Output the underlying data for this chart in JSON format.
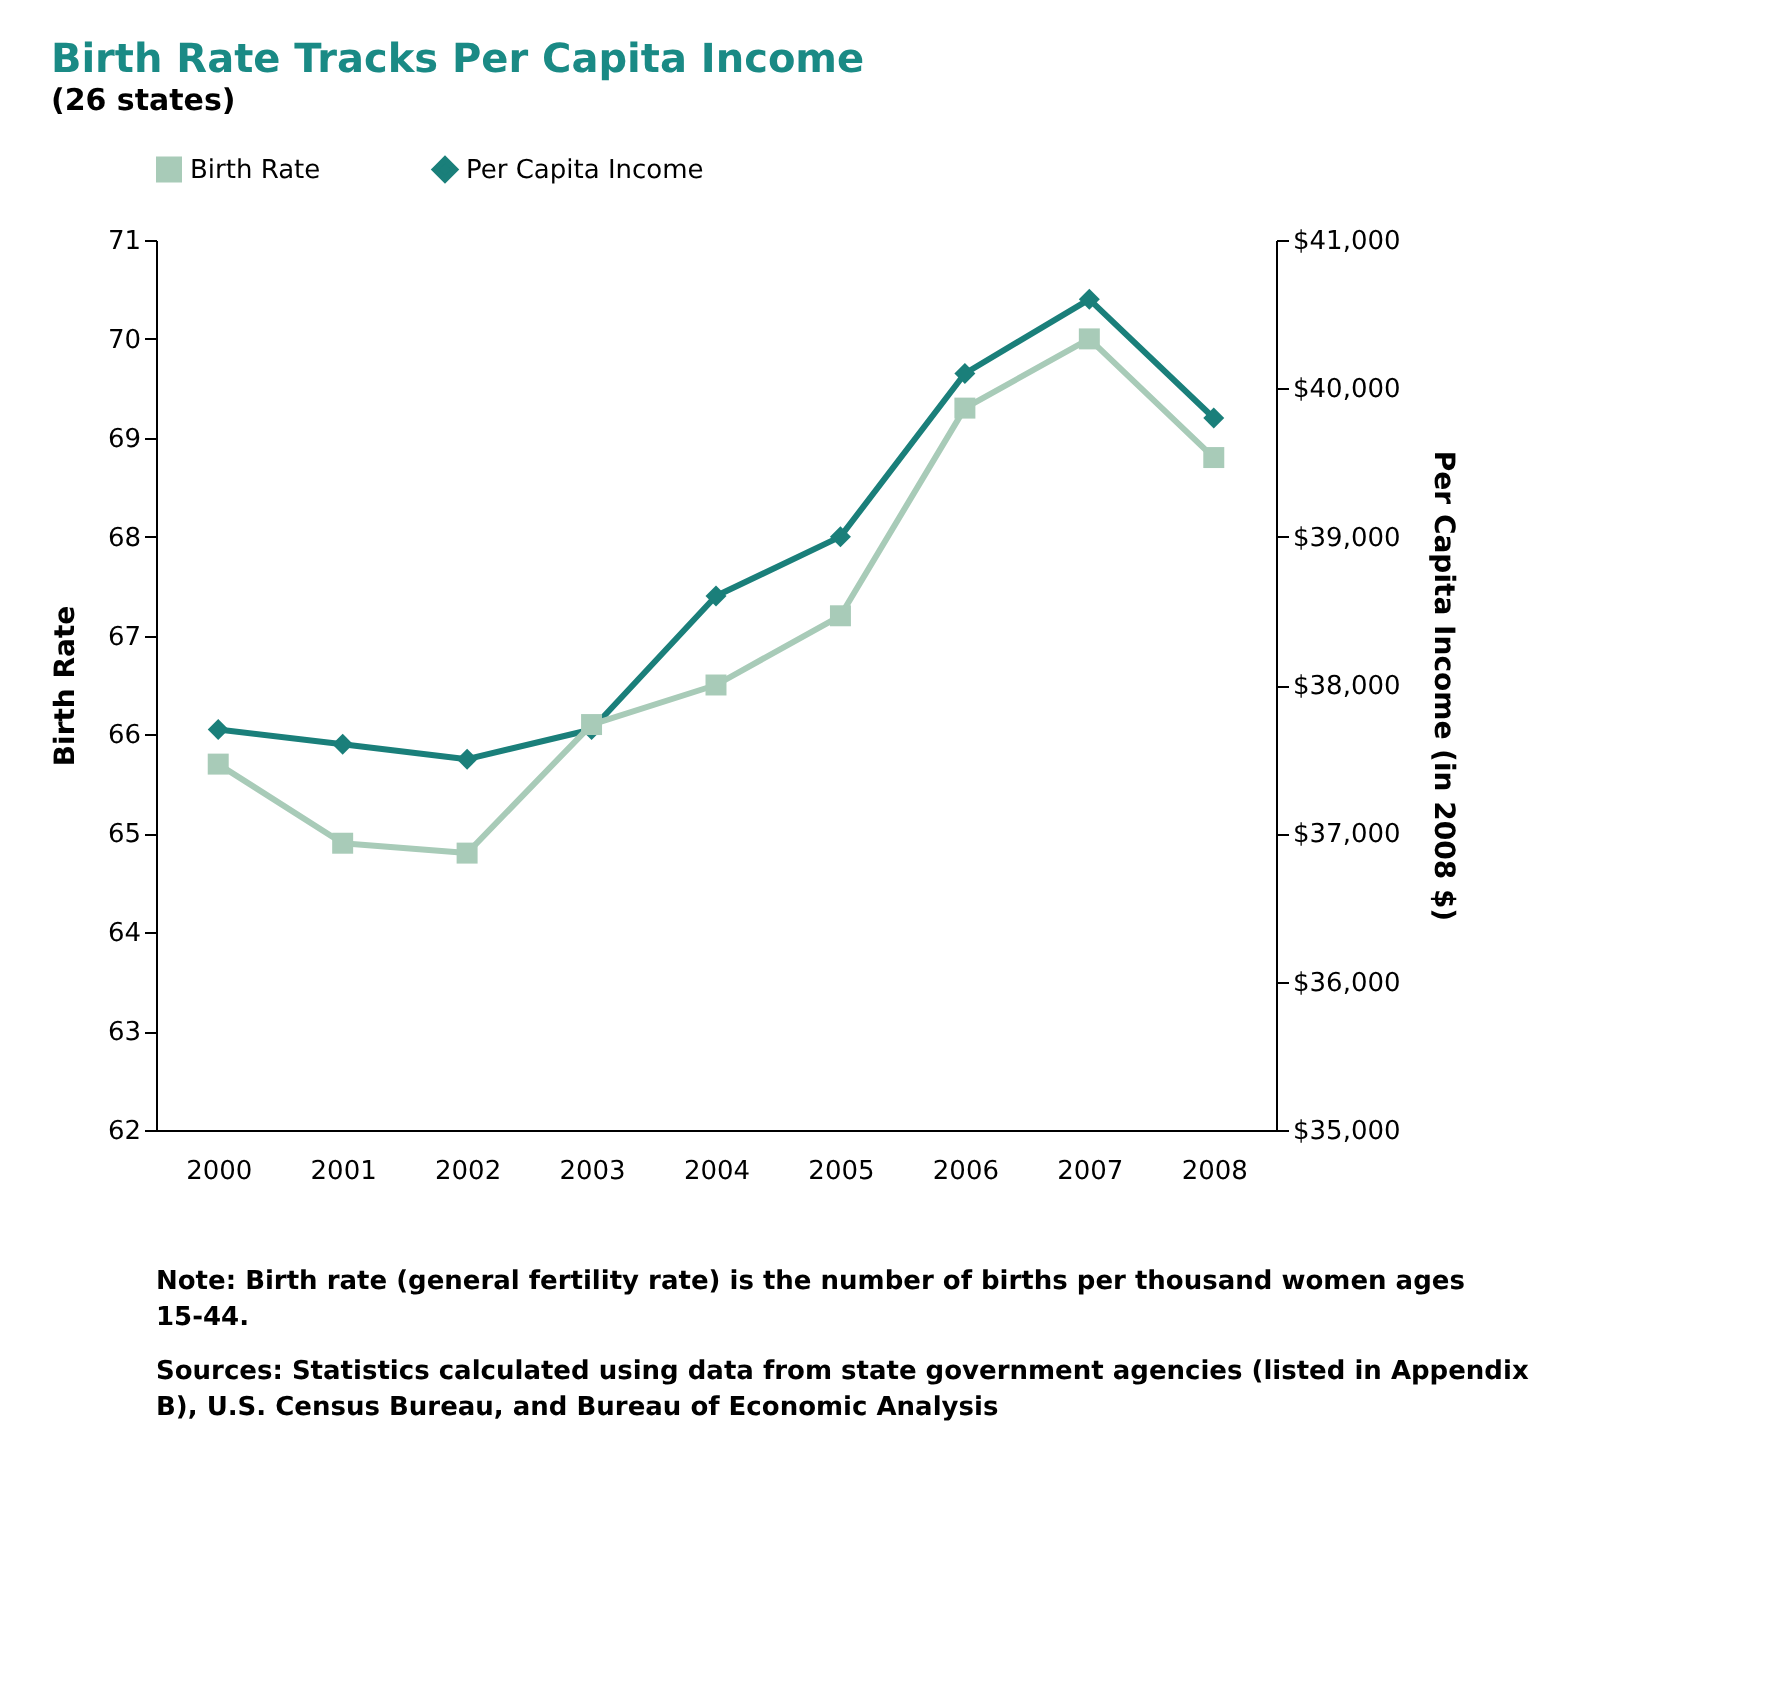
{
  "chart_data": {
    "type": "line",
    "title": "Birth Rate Tracks Per Capita Income",
    "subtitle": "(26 states)",
    "ylabel": "Birth Rate",
    "y2label": "Per Capita Income (in 2008 $)",
    "categories": [
      "2000",
      "2001",
      "2002",
      "2003",
      "2004",
      "2005",
      "2006",
      "2007",
      "2008"
    ],
    "series": [
      {
        "name": "Birth Rate",
        "color": "#a8cbb8",
        "marker": "square",
        "values": [
          65.7,
          64.9,
          64.8,
          66.1,
          66.5,
          67.2,
          69.3,
          70.0,
          68.8
        ]
      },
      {
        "name": "Per Capita Income",
        "color": "#1a7f7a",
        "marker": "diamond",
        "axis": "y2",
        "values": [
          37700,
          37600,
          37500,
          37700,
          38600,
          39000,
          40100,
          40600,
          39800
        ]
      }
    ],
    "ylim": [
      62,
      71
    ],
    "yticks": [
      62,
      63,
      64,
      65,
      66,
      67,
      68,
      69,
      70,
      71
    ],
    "y2lim": [
      35000,
      41000
    ],
    "y2ticks": [
      {
        "value": 35000,
        "label": "$35,000"
      },
      {
        "value": 36000,
        "label": "$36,000"
      },
      {
        "value": 37000,
        "label": "$37,000"
      },
      {
        "value": 38000,
        "label": "$38,000"
      },
      {
        "value": 39000,
        "label": "$39,000"
      },
      {
        "value": 40000,
        "label": "$40,000"
      },
      {
        "value": 41000,
        "label": "$41,000"
      }
    ],
    "legend": "top",
    "grid": false,
    "annotations": [
      "Note: Birth rate (general fertility rate) is the number of births per thousand women ages 15-44.",
      "Sources: Statistics calculated using data from state government agencies (listed in Appendix B), U.S. Census Bureau, and Bureau of Economic Analysis"
    ]
  }
}
